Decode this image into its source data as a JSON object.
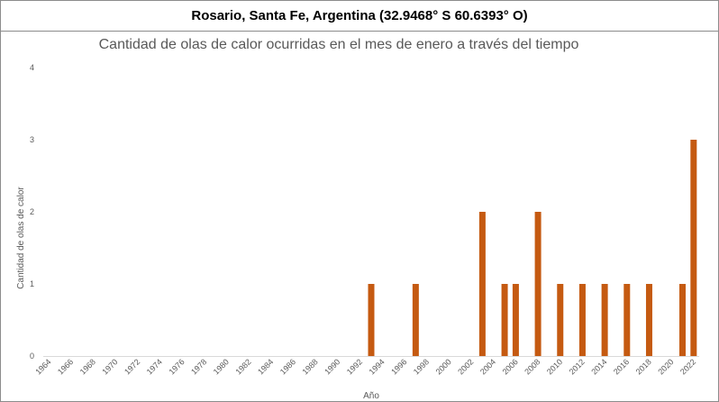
{
  "header": {
    "location": "Rosario, Santa Fe, Argentina (32.9468° S 60.6393° O)"
  },
  "chart_data": {
    "type": "bar",
    "title": "Cantidad de olas de calor ocurridas en el mes de enero a través del tiempo",
    "xlabel": "Año",
    "ylabel": "Cantidad de olas de calor",
    "ylim": [
      0,
      4
    ],
    "yticks": [
      0,
      1,
      2,
      3,
      4
    ],
    "grid": false,
    "bar_color": "#c55a11",
    "x_start": 1964,
    "x_end": 2022,
    "tick_labels": [
      "1964",
      "1966",
      "1968",
      "1970",
      "1972",
      "1974",
      "1976",
      "1978",
      "1980",
      "1982",
      "1984",
      "1986",
      "1988",
      "1990",
      "1992",
      "1994",
      "1996",
      "1998",
      "2000",
      "2002",
      "2004",
      "2006",
      "2008",
      "2010",
      "2012",
      "2014",
      "2016",
      "2018",
      "2020",
      "2022"
    ],
    "points": [
      {
        "x": 1993,
        "y": 1
      },
      {
        "x": 1997,
        "y": 1
      },
      {
        "x": 2003,
        "y": 2
      },
      {
        "x": 2005,
        "y": 1
      },
      {
        "x": 2006,
        "y": 1
      },
      {
        "x": 2008,
        "y": 2
      },
      {
        "x": 2010,
        "y": 1
      },
      {
        "x": 2012,
        "y": 1
      },
      {
        "x": 2014,
        "y": 1
      },
      {
        "x": 2016,
        "y": 1
      },
      {
        "x": 2018,
        "y": 1
      },
      {
        "x": 2021,
        "y": 1
      },
      {
        "x": 2022,
        "y": 3
      }
    ]
  }
}
